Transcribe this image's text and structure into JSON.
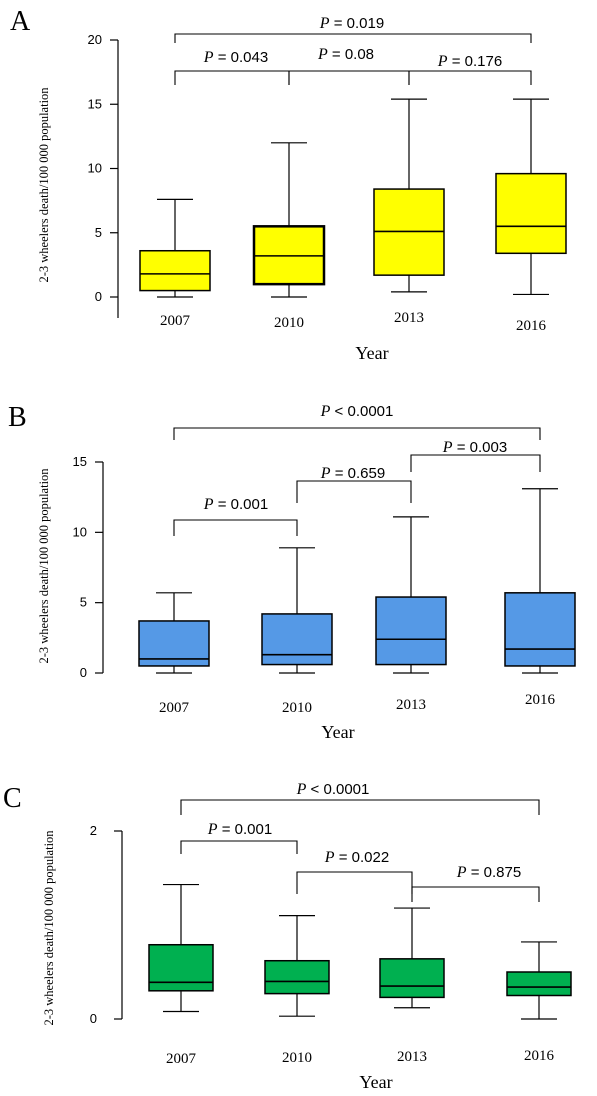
{
  "chart_data": [
    {
      "type": "box",
      "panel_label": "A",
      "ylabel": "2-3 wheelers death/100 000 population",
      "xlabel": "Year",
      "ylim": [
        0,
        20
      ],
      "yticks": [
        0,
        5,
        10,
        15,
        20
      ],
      "categories": [
        "2007",
        "2010",
        "2013",
        "2016"
      ],
      "box_color": "#ffff00",
      "boxes": [
        {
          "min": 0.0,
          "q1": 0.5,
          "median": 1.8,
          "q3": 3.6,
          "max": 7.6
        },
        {
          "min": 0.0,
          "q1": 1.0,
          "median": 3.2,
          "q3": 5.5,
          "max": 12.0
        },
        {
          "min": 0.4,
          "q1": 1.7,
          "median": 5.1,
          "q3": 8.4,
          "max": 15.4
        },
        {
          "min": 0.2,
          "q1": 3.4,
          "median": 5.5,
          "q3": 9.6,
          "max": 15.4
        }
      ],
      "comparisons": [
        {
          "from": 0,
          "to": 3,
          "label": "P = 0.019"
        },
        {
          "from": 0,
          "to": 1,
          "label": "P = 0.043"
        },
        {
          "from": 1,
          "to": 2,
          "label": "P = 0.08"
        },
        {
          "from": 2,
          "to": 3,
          "label": "P = 0.176"
        }
      ]
    },
    {
      "type": "box",
      "panel_label": "B",
      "ylabel": "2-3 wheelers death/100 000 population",
      "xlabel": "Year",
      "ylim": [
        0,
        15
      ],
      "yticks": [
        0,
        5,
        10,
        15
      ],
      "categories": [
        "2007",
        "2010",
        "2013",
        "2016"
      ],
      "box_color": "#5599e6",
      "boxes": [
        {
          "min": 0.0,
          "q1": 0.5,
          "median": 1.0,
          "q3": 3.7,
          "max": 5.7
        },
        {
          "min": 0.0,
          "q1": 0.6,
          "median": 1.3,
          "q3": 4.2,
          "max": 8.9
        },
        {
          "min": 0.0,
          "q1": 0.6,
          "median": 2.4,
          "q3": 5.4,
          "max": 11.1
        },
        {
          "min": 0.0,
          "q1": 0.5,
          "median": 1.7,
          "q3": 5.7,
          "max": 13.1
        }
      ],
      "comparisons": [
        {
          "from": 0,
          "to": 3,
          "label": "P < 0.0001"
        },
        {
          "from": 2,
          "to": 3,
          "label": "P = 0.003"
        },
        {
          "from": 1,
          "to": 2,
          "label": "P = 0.659"
        },
        {
          "from": 0,
          "to": 1,
          "label": "P = 0.001"
        }
      ]
    },
    {
      "type": "box",
      "panel_label": "C",
      "ylabel": "2-3 wheelers death/100 000 population",
      "xlabel": "Year",
      "ylim": [
        0,
        2
      ],
      "yticks": [
        0,
        2
      ],
      "categories": [
        "2007",
        "2010",
        "2013",
        "2016"
      ],
      "box_color": "#00b050",
      "boxes": [
        {
          "min": 0.08,
          "q1": 0.3,
          "median": 0.39,
          "q3": 0.79,
          "max": 1.43
        },
        {
          "min": 0.03,
          "q1": 0.27,
          "median": 0.4,
          "q3": 0.62,
          "max": 1.1
        },
        {
          "min": 0.12,
          "q1": 0.23,
          "median": 0.35,
          "q3": 0.64,
          "max": 1.18
        },
        {
          "min": 0.0,
          "q1": 0.25,
          "median": 0.34,
          "q3": 0.5,
          "max": 0.82
        }
      ],
      "comparisons": [
        {
          "from": 0,
          "to": 3,
          "label": "P < 0.0001"
        },
        {
          "from": 0,
          "to": 1,
          "label": "P = 0.001"
        },
        {
          "from": 1,
          "to": 2,
          "label": "P = 0.022"
        },
        {
          "from": 2,
          "to": 3,
          "label": "P = 0.875"
        }
      ]
    }
  ]
}
